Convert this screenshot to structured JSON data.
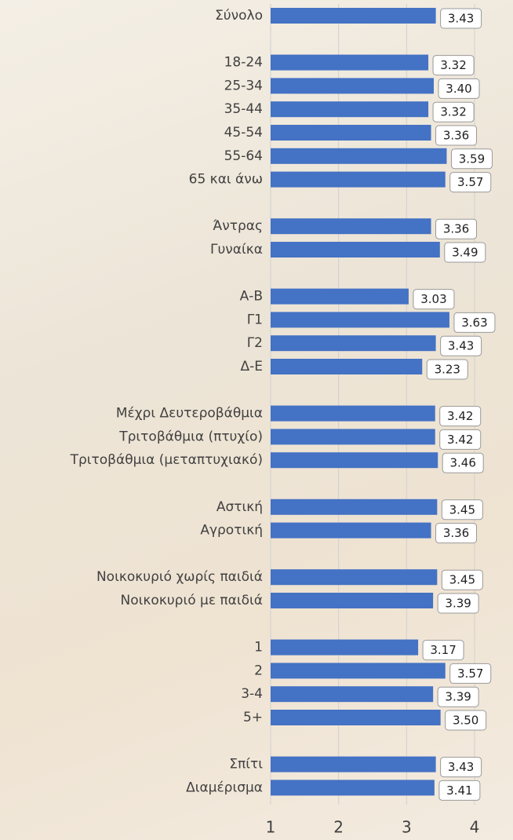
{
  "chart_data": {
    "type": "hbar",
    "categories": [
      "Σύνολο",
      null,
      "18-24",
      "25-34",
      "35-44",
      "45-54",
      "55-64",
      "65 και άνω",
      null,
      "Άντρας",
      "Γυναίκα",
      null,
      "Α-Β",
      "Γ1",
      "Γ2",
      "Δ-Ε",
      null,
      "Μέχρι Δευτεροβάθμια",
      "Τριτοβάθμια (πτυχίο)",
      "Τριτοβάθμια (μεταπτυχιακό)",
      null,
      "Αστική",
      "Αγροτική",
      null,
      "Νοικοκυριό χωρίς παιδιά",
      "Νοικοκυριό με παιδιά",
      null,
      "1",
      "2",
      "3-4",
      "5+",
      null,
      "Σπίτι",
      "Διαμέρισμα"
    ],
    "values": [
      3.43,
      null,
      3.32,
      3.4,
      3.32,
      3.36,
      3.59,
      3.57,
      null,
      3.36,
      3.49,
      null,
      3.03,
      3.63,
      3.43,
      3.23,
      null,
      3.42,
      3.42,
      3.46,
      null,
      3.45,
      3.36,
      null,
      3.45,
      3.39,
      null,
      3.17,
      3.57,
      3.39,
      3.5,
      null,
      3.43,
      3.41
    ],
    "value_labels": [
      "3.43",
      null,
      "3.32",
      "3.40",
      "3.32",
      "3.36",
      "3.59",
      "3.57",
      null,
      "3.36",
      "3.49",
      null,
      "3.03",
      "3.63",
      "3.43",
      "3.23",
      null,
      "3.42",
      "3.42",
      "3.46",
      null,
      "3.45",
      "3.36",
      null,
      "3.45",
      "3.39",
      null,
      "3.17",
      "3.57",
      "3.39",
      "3.50",
      null,
      "3.43",
      "3.41"
    ],
    "color": "#4472c4",
    "xlim": [
      1,
      4
    ],
    "xticks": [
      1,
      2,
      3,
      4
    ],
    "grid": true
  }
}
